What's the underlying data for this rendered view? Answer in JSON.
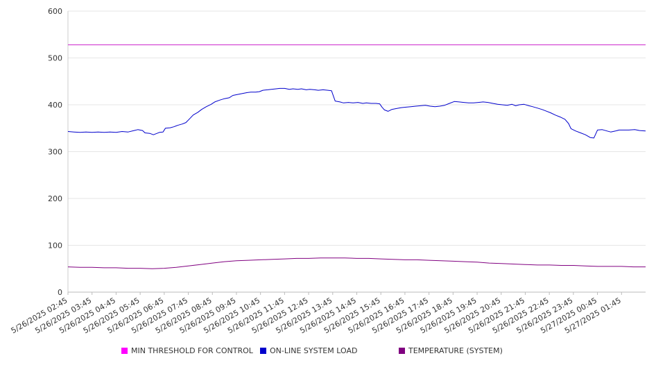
{
  "chart_data": {
    "type": "line",
    "title": "",
    "xlabel": "",
    "ylabel": "",
    "ylim": [
      0,
      600
    ],
    "yticks": [
      0,
      100,
      200,
      300,
      400,
      500,
      600
    ],
    "grid": "horizontal",
    "legend_position": "bottom",
    "x_tick_labels": [
      "5/26/2025 02:45",
      "5/26/2025 03:45",
      "5/26/2025 04:45",
      "5/26/2025 05:45",
      "5/26/2025 06:45",
      "5/26/2025 07:45",
      "5/26/2025 08:45",
      "5/26/2025 09:45",
      "5/26/2025 10:45",
      "5/26/2025 11:45",
      "5/26/2025 12:45",
      "5/26/2025 13:45",
      "5/26/2025 14:45",
      "5/26/2025 15:45",
      "5/26/2025 16:45",
      "5/26/2025 17:45",
      "5/26/2025 18:45",
      "5/26/2025 19:45",
      "5/26/2025 20:45",
      "5/26/2025 21:45",
      "5/26/2025 22:45",
      "5/26/2025 23:45",
      "5/27/2025 00:45",
      "5/27/2025 01:45"
    ],
    "x_range_hours": [
      0,
      24
    ],
    "series": [
      {
        "name": "MIN THRESHOLD FOR CONTROL",
        "color": "#cc22cc",
        "points": [
          [
            0,
            528
          ],
          [
            24,
            528
          ]
        ]
      },
      {
        "name": "ON-LINE SYSTEM LOAD",
        "color": "#0000cc",
        "points": [
          [
            0,
            343
          ],
          [
            0.25,
            342
          ],
          [
            0.5,
            341
          ],
          [
            0.75,
            342
          ],
          [
            1,
            341
          ],
          [
            1.25,
            342
          ],
          [
            1.5,
            341
          ],
          [
            1.75,
            342
          ],
          [
            2,
            341
          ],
          [
            2.25,
            343
          ],
          [
            2.5,
            342
          ],
          [
            2.75,
            345
          ],
          [
            2.9,
            347
          ],
          [
            3.1,
            345
          ],
          [
            3.2,
            340
          ],
          [
            3.4,
            339
          ],
          [
            3.55,
            336
          ],
          [
            3.7,
            339
          ],
          [
            3.8,
            341
          ],
          [
            3.95,
            342
          ],
          [
            4.05,
            350
          ],
          [
            4.25,
            351
          ],
          [
            4.4,
            353
          ],
          [
            4.55,
            356
          ],
          [
            4.75,
            359
          ],
          [
            4.9,
            362
          ],
          [
            5.05,
            370
          ],
          [
            5.2,
            378
          ],
          [
            5.4,
            384
          ],
          [
            5.55,
            390
          ],
          [
            5.75,
            396
          ],
          [
            5.95,
            401
          ],
          [
            6.1,
            406
          ],
          [
            6.3,
            410
          ],
          [
            6.5,
            413
          ],
          [
            6.7,
            415
          ],
          [
            6.85,
            420
          ],
          [
            7.05,
            422
          ],
          [
            7.25,
            424
          ],
          [
            7.45,
            426
          ],
          [
            7.6,
            427
          ],
          [
            7.8,
            427
          ],
          [
            7.95,
            428
          ],
          [
            8.1,
            431
          ],
          [
            8.3,
            432
          ],
          [
            8.45,
            433
          ],
          [
            8.65,
            434
          ],
          [
            8.8,
            435
          ],
          [
            9.0,
            435
          ],
          [
            9.2,
            433
          ],
          [
            9.35,
            434
          ],
          [
            9.55,
            433
          ],
          [
            9.7,
            434
          ],
          [
            9.9,
            432
          ],
          [
            10.05,
            433
          ],
          [
            10.25,
            432
          ],
          [
            10.4,
            431
          ],
          [
            10.6,
            432
          ],
          [
            10.8,
            431
          ],
          [
            10.95,
            430
          ],
          [
            11.1,
            408
          ],
          [
            11.3,
            406
          ],
          [
            11.45,
            404
          ],
          [
            11.65,
            405
          ],
          [
            11.85,
            404
          ],
          [
            12.05,
            405
          ],
          [
            12.25,
            403
          ],
          [
            12.4,
            404
          ],
          [
            12.6,
            403
          ],
          [
            12.8,
            403
          ],
          [
            12.95,
            402
          ],
          [
            13.05,
            395
          ],
          [
            13.15,
            389
          ],
          [
            13.3,
            386
          ],
          [
            13.45,
            390
          ],
          [
            13.65,
            392
          ],
          [
            13.85,
            394
          ],
          [
            14.05,
            395
          ],
          [
            14.25,
            396
          ],
          [
            14.45,
            397
          ],
          [
            14.65,
            398
          ],
          [
            14.85,
            399
          ],
          [
            15.05,
            397
          ],
          [
            15.25,
            396
          ],
          [
            15.45,
            397
          ],
          [
            15.65,
            399
          ],
          [
            15.85,
            403
          ],
          [
            16.05,
            407
          ],
          [
            16.25,
            406
          ],
          [
            16.45,
            405
          ],
          [
            16.65,
            404
          ],
          [
            16.85,
            404
          ],
          [
            17.05,
            405
          ],
          [
            17.25,
            406
          ],
          [
            17.45,
            405
          ],
          [
            17.65,
            403
          ],
          [
            17.85,
            401
          ],
          [
            18.05,
            400
          ],
          [
            18.25,
            399
          ],
          [
            18.45,
            401
          ],
          [
            18.6,
            398
          ],
          [
            18.75,
            400
          ],
          [
            18.95,
            401
          ],
          [
            19.15,
            398
          ],
          [
            19.3,
            396
          ],
          [
            19.5,
            393
          ],
          [
            19.7,
            390
          ],
          [
            19.85,
            387
          ],
          [
            20.05,
            383
          ],
          [
            20.25,
            378
          ],
          [
            20.45,
            374
          ],
          [
            20.65,
            369
          ],
          [
            20.8,
            360
          ],
          [
            20.9,
            349
          ],
          [
            21.1,
            344
          ],
          [
            21.3,
            340
          ],
          [
            21.5,
            336
          ],
          [
            21.7,
            330
          ],
          [
            21.85,
            329
          ],
          [
            22.0,
            346
          ],
          [
            22.2,
            347
          ],
          [
            22.4,
            344
          ],
          [
            22.55,
            342
          ],
          [
            22.75,
            344
          ],
          [
            22.9,
            346
          ],
          [
            23.1,
            346
          ],
          [
            23.3,
            346
          ],
          [
            23.55,
            347
          ],
          [
            23.75,
            345
          ],
          [
            24,
            344
          ]
        ]
      },
      {
        "name": "TEMPERATURE (SYSTEM)",
        "color": "#800080",
        "points": [
          [
            0,
            54
          ],
          [
            0.5,
            53
          ],
          [
            1,
            53
          ],
          [
            1.5,
            52
          ],
          [
            2,
            52
          ],
          [
            2.5,
            51
          ],
          [
            3,
            51
          ],
          [
            3.5,
            50
          ],
          [
            4,
            51
          ],
          [
            4.5,
            53
          ],
          [
            5,
            56
          ],
          [
            5.5,
            59
          ],
          [
            6,
            62
          ],
          [
            6.5,
            65
          ],
          [
            7,
            67
          ],
          [
            7.5,
            68
          ],
          [
            8,
            69
          ],
          [
            8.5,
            70
          ],
          [
            9,
            71
          ],
          [
            9.5,
            72
          ],
          [
            10,
            72
          ],
          [
            10.5,
            73
          ],
          [
            11,
            73
          ],
          [
            11.5,
            73
          ],
          [
            12,
            72
          ],
          [
            12.5,
            72
          ],
          [
            13,
            71
          ],
          [
            13.5,
            70
          ],
          [
            14,
            69
          ],
          [
            14.5,
            69
          ],
          [
            15,
            68
          ],
          [
            15.5,
            67
          ],
          [
            16,
            66
          ],
          [
            16.5,
            65
          ],
          [
            17,
            64
          ],
          [
            17.5,
            62
          ],
          [
            18,
            61
          ],
          [
            18.5,
            60
          ],
          [
            19,
            59
          ],
          [
            19.5,
            58
          ],
          [
            20,
            58
          ],
          [
            20.5,
            57
          ],
          [
            21,
            57
          ],
          [
            21.5,
            56
          ],
          [
            22,
            55
          ],
          [
            22.5,
            55
          ],
          [
            23,
            55
          ],
          [
            23.5,
            54
          ],
          [
            24,
            54
          ]
        ]
      }
    ]
  }
}
